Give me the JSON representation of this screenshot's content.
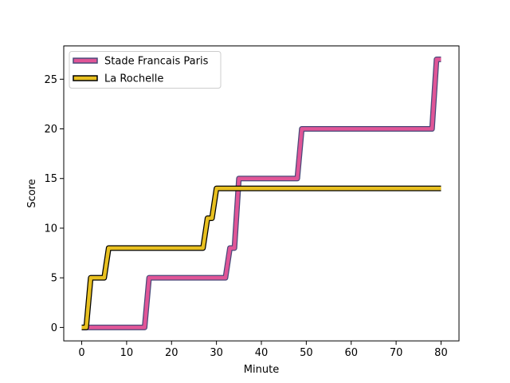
{
  "chart_data": {
    "type": "line",
    "title": "",
    "xlabel": "Minute",
    "ylabel": "Score",
    "xlim": [
      -4,
      84
    ],
    "ylim": [
      -1.35,
      28.35
    ],
    "xticks": [
      0,
      10,
      20,
      30,
      40,
      50,
      60,
      70,
      80
    ],
    "yticks": [
      0,
      5,
      10,
      15,
      20,
      25
    ],
    "grid": false,
    "legend_position": "top-left",
    "series": [
      {
        "name": "Stade Francais Paris",
        "color": "#e05597",
        "edge_color": "#4a4a7a",
        "x": [
          0,
          14,
          15,
          32,
          33,
          34,
          35,
          36,
          48,
          49,
          78,
          79,
          80
        ],
        "y": [
          0,
          0,
          5,
          5,
          8,
          8,
          15,
          15,
          15,
          20,
          20,
          27,
          27
        ]
      },
      {
        "name": "La Rochelle",
        "color": "#e8c020",
        "edge_color": "#000000",
        "x": [
          0,
          1,
          2,
          5,
          6,
          27,
          28,
          29,
          30,
          80
        ],
        "y": [
          0,
          0,
          5,
          5,
          8,
          8,
          11,
          11,
          14,
          14
        ]
      }
    ]
  }
}
